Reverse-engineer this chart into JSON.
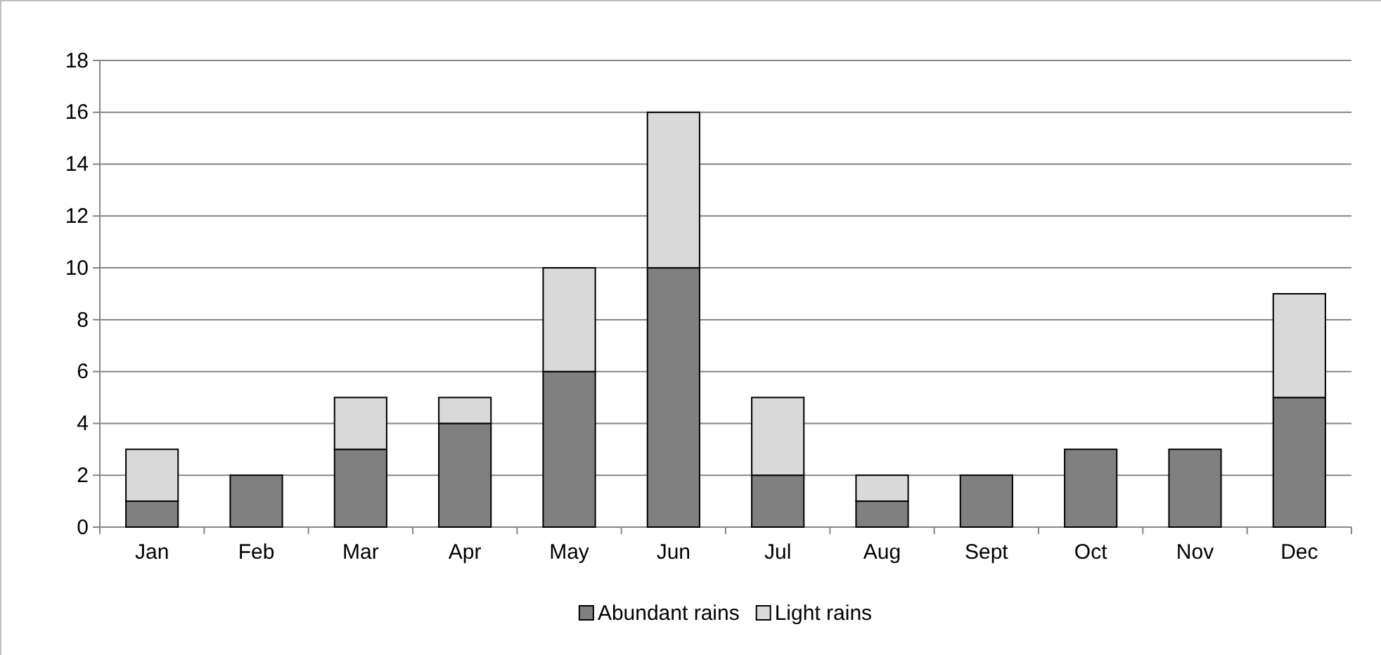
{
  "chart_data": {
    "type": "bar",
    "stacked": true,
    "categories": [
      "Jan",
      "Feb",
      "Mar",
      "Apr",
      "May",
      "Jun",
      "Jul",
      "Aug",
      "Sept",
      "Oct",
      "Nov",
      "Dec"
    ],
    "series": [
      {
        "name": "Abundant rains",
        "color": "#808080",
        "values": [
          1,
          2,
          3,
          4,
          6,
          10,
          2,
          1,
          2,
          3,
          3,
          5
        ]
      },
      {
        "name": "Light rains",
        "color": "#d9d9d9",
        "values": [
          2,
          0,
          2,
          1,
          4,
          6,
          3,
          1,
          0,
          0,
          0,
          4
        ]
      }
    ],
    "ylim": [
      0,
      18
    ],
    "yticks": [
      0,
      2,
      4,
      6,
      8,
      10,
      12,
      14,
      16,
      18
    ],
    "grid": "y",
    "legend": "bottom"
  }
}
